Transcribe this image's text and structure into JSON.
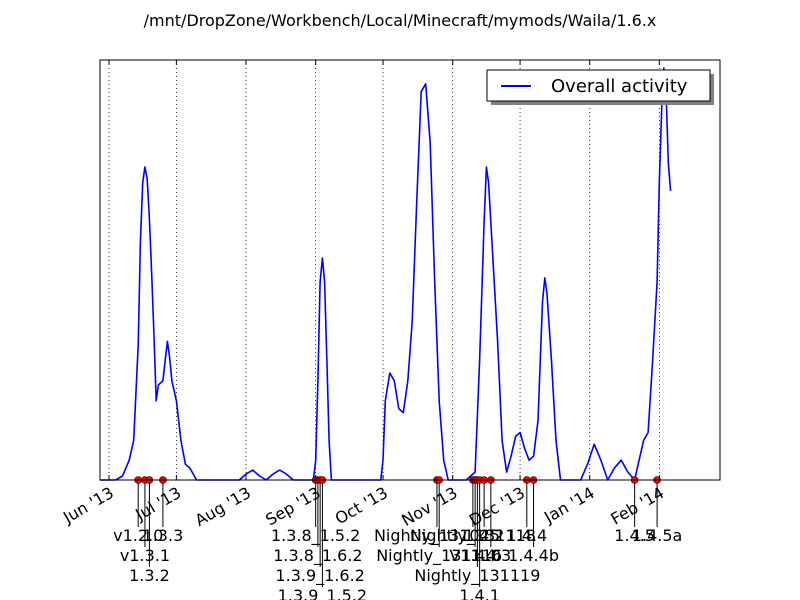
{
  "title": "/mnt/DropZone/Workbench/Local/Minecraft/mymods/Waila/1.6.x",
  "chart_data": {
    "type": "line",
    "title": "/mnt/DropZone/Workbench/Local/Minecraft/mymods/Waila/1.6.x",
    "xlabel": "",
    "ylabel": "",
    "x_range": [
      "2013-05-28",
      "2014-02-28"
    ],
    "x_ticks": [
      {
        "date": "2013-06-01",
        "label": "Jun '13"
      },
      {
        "date": "2013-07-01",
        "label": "Jul '13"
      },
      {
        "date": "2013-08-01",
        "label": "Aug '13"
      },
      {
        "date": "2013-09-01",
        "label": "Sep '13"
      },
      {
        "date": "2013-10-01",
        "label": "Oct '13"
      },
      {
        "date": "2013-11-01",
        "label": "Nov '13"
      },
      {
        "date": "2013-12-01",
        "label": "Dec '13"
      },
      {
        "date": "2014-01-01",
        "label": "Jan '14"
      },
      {
        "date": "2014-02-01",
        "label": "Feb '14"
      }
    ],
    "y_ticks_shown": false,
    "ylim": [
      0,
      1
    ],
    "grid": "vertical dotted",
    "legend": {
      "position": "top-right",
      "entries": [
        "Overall activity"
      ]
    },
    "series": [
      {
        "name": "Overall activity",
        "color": "#0000ff",
        "points": [
          [
            "2013-05-28",
            0.0
          ],
          [
            "2013-06-04",
            0.0
          ],
          [
            "2013-06-07",
            0.01
          ],
          [
            "2013-06-10",
            0.05
          ],
          [
            "2013-06-12",
            0.1
          ],
          [
            "2013-06-14",
            0.34
          ],
          [
            "2013-06-15",
            0.6
          ],
          [
            "2013-06-16",
            0.75
          ],
          [
            "2013-06-17",
            0.79
          ],
          [
            "2013-06-18",
            0.76
          ],
          [
            "2013-06-19",
            0.66
          ],
          [
            "2013-06-20",
            0.52
          ],
          [
            "2013-06-21",
            0.37
          ],
          [
            "2013-06-22",
            0.2
          ],
          [
            "2013-06-23",
            0.24
          ],
          [
            "2013-06-25",
            0.25
          ],
          [
            "2013-06-26",
            0.3
          ],
          [
            "2013-06-27",
            0.35
          ],
          [
            "2013-06-28",
            0.31
          ],
          [
            "2013-06-29",
            0.25
          ],
          [
            "2013-07-01",
            0.2
          ],
          [
            "2013-07-03",
            0.1
          ],
          [
            "2013-07-05",
            0.04
          ],
          [
            "2013-07-07",
            0.03
          ],
          [
            "2013-07-10",
            0.0
          ],
          [
            "2013-07-29",
            0.0
          ],
          [
            "2013-08-01",
            0.015
          ],
          [
            "2013-08-04",
            0.025
          ],
          [
            "2013-08-07",
            0.01
          ],
          [
            "2013-08-10",
            0.0
          ],
          [
            "2013-08-13",
            0.015
          ],
          [
            "2013-08-16",
            0.025
          ],
          [
            "2013-08-19",
            0.015
          ],
          [
            "2013-08-22",
            0.0
          ],
          [
            "2013-08-31",
            0.0
          ],
          [
            "2013-09-01",
            0.05
          ],
          [
            "2013-09-02",
            0.25
          ],
          [
            "2013-09-03",
            0.5
          ],
          [
            "2013-09-04",
            0.56
          ],
          [
            "2013-09-05",
            0.5
          ],
          [
            "2013-09-06",
            0.3
          ],
          [
            "2013-09-07",
            0.1
          ],
          [
            "2013-09-08",
            0.0
          ],
          [
            "2013-09-30",
            0.0
          ],
          [
            "2013-10-01",
            0.05
          ],
          [
            "2013-10-02",
            0.2
          ],
          [
            "2013-10-04",
            0.27
          ],
          [
            "2013-10-06",
            0.25
          ],
          [
            "2013-10-08",
            0.18
          ],
          [
            "2013-10-10",
            0.17
          ],
          [
            "2013-10-12",
            0.25
          ],
          [
            "2013-10-14",
            0.4
          ],
          [
            "2013-10-16",
            0.7
          ],
          [
            "2013-10-18",
            0.98
          ],
          [
            "2013-10-20",
            1.0
          ],
          [
            "2013-10-22",
            0.85
          ],
          [
            "2013-10-24",
            0.5
          ],
          [
            "2013-10-26",
            0.2
          ],
          [
            "2013-10-28",
            0.05
          ],
          [
            "2013-10-30",
            0.0
          ],
          [
            "2013-11-07",
            0.0
          ],
          [
            "2013-11-09",
            0.01
          ],
          [
            "2013-11-11",
            0.02
          ],
          [
            "2013-11-13",
            0.3
          ],
          [
            "2013-11-15",
            0.65
          ],
          [
            "2013-11-16",
            0.79
          ],
          [
            "2013-11-17",
            0.75
          ],
          [
            "2013-11-19",
            0.55
          ],
          [
            "2013-11-21",
            0.35
          ],
          [
            "2013-11-23",
            0.1
          ],
          [
            "2013-11-25",
            0.02
          ],
          [
            "2013-11-27",
            0.06
          ],
          [
            "2013-11-29",
            0.11
          ],
          [
            "2013-12-01",
            0.12
          ],
          [
            "2013-12-03",
            0.08
          ],
          [
            "2013-12-05",
            0.05
          ],
          [
            "2013-12-07",
            0.06
          ],
          [
            "2013-12-09",
            0.15
          ],
          [
            "2013-12-11",
            0.45
          ],
          [
            "2013-12-12",
            0.51
          ],
          [
            "2013-12-13",
            0.47
          ],
          [
            "2013-12-15",
            0.3
          ],
          [
            "2013-12-17",
            0.1
          ],
          [
            "2013-12-19",
            0.0
          ],
          [
            "2013-12-28",
            0.0
          ],
          [
            "2013-12-31",
            0.04
          ],
          [
            "2014-01-03",
            0.09
          ],
          [
            "2014-01-06",
            0.05
          ],
          [
            "2014-01-09",
            0.0
          ],
          [
            "2014-01-12",
            0.03
          ],
          [
            "2014-01-15",
            0.05
          ],
          [
            "2014-01-18",
            0.02
          ],
          [
            "2014-01-21",
            0.0
          ],
          [
            "2014-01-23",
            0.05
          ],
          [
            "2014-01-25",
            0.1
          ],
          [
            "2014-01-27",
            0.12
          ],
          [
            "2014-01-29",
            0.3
          ],
          [
            "2014-01-31",
            0.5
          ],
          [
            "2014-02-01",
            0.75
          ],
          [
            "2014-02-02",
            0.93
          ],
          [
            "2014-02-03",
            1.04
          ],
          [
            "2014-02-04",
            0.98
          ],
          [
            "2014-02-05",
            0.8
          ],
          [
            "2014-02-06",
            0.73
          ]
        ]
      }
    ],
    "releases": [
      {
        "date": "2013-06-14",
        "label": "v1.2.0"
      },
      {
        "date": "2013-06-17",
        "label": "v1.3.1"
      },
      {
        "date": "2013-06-19",
        "label": "1.3.2"
      },
      {
        "date": "2013-06-25",
        "label": "1.3.3"
      },
      {
        "date": "2013-09-01",
        "label": "1.3.8_1.5.2"
      },
      {
        "date": "2013-09-02",
        "label": "1.3.8_1.6.2"
      },
      {
        "date": "2013-09-03",
        "label": "1.3.9_1.6.2"
      },
      {
        "date": "2013-09-04",
        "label": "1.3.9_1.5.2"
      },
      {
        "date": "2013-10-25",
        "label": "Nightly_131025"
      },
      {
        "date": "2013-10-26",
        "label": "Nightly_131116"
      },
      {
        "date": "2013-11-10",
        "label": "Nightly_131118"
      },
      {
        "date": "2013-11-11",
        "label": "V1.4.0"
      },
      {
        "date": "2013-11-12",
        "label": "Nightly_131119"
      },
      {
        "date": "2013-11-13",
        "label": "1.4.1"
      },
      {
        "date": "2013-11-15",
        "label": "1.4.2"
      },
      {
        "date": "2013-11-18",
        "label": "1.4.3"
      },
      {
        "date": "2013-12-04",
        "label": "1.4.4"
      },
      {
        "date": "2013-12-07",
        "label": "1.4.4b"
      },
      {
        "date": "2014-01-21",
        "label": "1.4.5"
      },
      {
        "date": "2014-01-31",
        "label": "1.4.5a"
      }
    ]
  }
}
